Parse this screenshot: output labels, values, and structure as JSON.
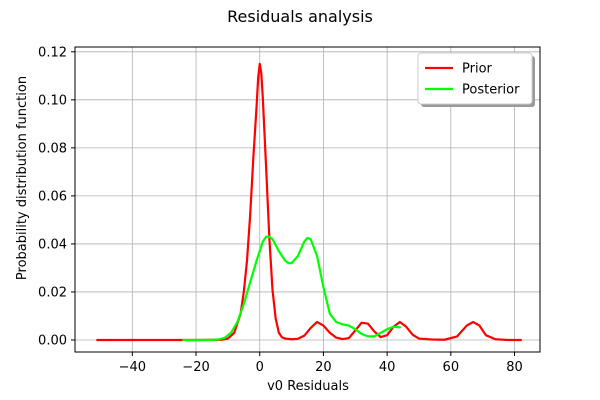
{
  "chart_data": {
    "type": "line",
    "title": "Residuals analysis",
    "xlabel": "v0 Residuals",
    "ylabel": "Probability distribution function",
    "xlim": [
      -58,
      88
    ],
    "ylim": [
      -0.005,
      0.122
    ],
    "x_ticks": [
      -40,
      -20,
      0,
      20,
      40,
      60,
      80
    ],
    "x_tick_labels": [
      "−40",
      "−20",
      "0",
      "20",
      "40",
      "60",
      "80"
    ],
    "y_ticks": [
      0.0,
      0.02,
      0.04,
      0.06,
      0.08,
      0.1,
      0.12
    ],
    "y_tick_labels": [
      "0.00",
      "0.02",
      "0.04",
      "0.06",
      "0.08",
      "0.10",
      "0.12"
    ],
    "grid": true,
    "legend_position": "top-right",
    "series": [
      {
        "name": "Prior",
        "color": "#ff0000",
        "points": [
          [
            -51,
            0.0
          ],
          [
            -40,
            0.0
          ],
          [
            -30,
            0.0
          ],
          [
            -20,
            0.0
          ],
          [
            -12,
            0.0001
          ],
          [
            -10,
            0.0006
          ],
          [
            -8,
            0.003
          ],
          [
            -6,
            0.011
          ],
          [
            -5,
            0.02
          ],
          [
            -4,
            0.033
          ],
          [
            -3,
            0.052
          ],
          [
            -2,
            0.076
          ],
          [
            -1,
            0.097
          ],
          [
            -0.5,
            0.109
          ],
          [
            0,
            0.115
          ],
          [
            0.5,
            0.111
          ],
          [
            1,
            0.1
          ],
          [
            2,
            0.072
          ],
          [
            3,
            0.043
          ],
          [
            4,
            0.021
          ],
          [
            5,
            0.009
          ],
          [
            6,
            0.003
          ],
          [
            7,
            0.0011
          ],
          [
            8,
            0.0006
          ],
          [
            10,
            0.0003
          ],
          [
            12,
            0.0005
          ],
          [
            14,
            0.0018
          ],
          [
            16,
            0.005
          ],
          [
            18,
            0.0075
          ],
          [
            20,
            0.006
          ],
          [
            22,
            0.003
          ],
          [
            24,
            0.001
          ],
          [
            26,
            0.0004
          ],
          [
            28,
            0.0008
          ],
          [
            30,
            0.004
          ],
          [
            32,
            0.0072
          ],
          [
            34,
            0.0068
          ],
          [
            36,
            0.0035
          ],
          [
            38,
            0.0012
          ],
          [
            40,
            0.002
          ],
          [
            42,
            0.0055
          ],
          [
            44,
            0.0075
          ],
          [
            46,
            0.0055
          ],
          [
            48,
            0.0022
          ],
          [
            50,
            0.0006
          ],
          [
            54,
            0.0002
          ],
          [
            58,
            0.0001
          ],
          [
            62,
            0.0015
          ],
          [
            65,
            0.006
          ],
          [
            67,
            0.0075
          ],
          [
            69,
            0.006
          ],
          [
            71,
            0.002
          ],
          [
            74,
            0.0003
          ],
          [
            78,
            0.0
          ],
          [
            82,
            0.0
          ]
        ]
      },
      {
        "name": "Posterior",
        "color": "#00ff00",
        "points": [
          [
            -24,
            0.0
          ],
          [
            -20,
            0.0
          ],
          [
            -16,
            0.0
          ],
          [
            -13,
            0.0002
          ],
          [
            -11,
            0.0009
          ],
          [
            -9,
            0.003
          ],
          [
            -7,
            0.0075
          ],
          [
            -5,
            0.015
          ],
          [
            -3,
            0.024
          ],
          [
            -1,
            0.033
          ],
          [
            1,
            0.041
          ],
          [
            2,
            0.043
          ],
          [
            3,
            0.043
          ],
          [
            4,
            0.042
          ],
          [
            6,
            0.037
          ],
          [
            8,
            0.033
          ],
          [
            9,
            0.032
          ],
          [
            10,
            0.032
          ],
          [
            12,
            0.035
          ],
          [
            14,
            0.041
          ],
          [
            15,
            0.0425
          ],
          [
            16,
            0.042
          ],
          [
            18,
            0.035
          ],
          [
            20,
            0.022
          ],
          [
            22,
            0.011
          ],
          [
            24,
            0.0075
          ],
          [
            26,
            0.0065
          ],
          [
            28,
            0.006
          ],
          [
            30,
            0.0045
          ],
          [
            32,
            0.0025
          ],
          [
            34,
            0.0015
          ],
          [
            36,
            0.0015
          ],
          [
            38,
            0.003
          ],
          [
            40,
            0.0045
          ],
          [
            42,
            0.0055
          ],
          [
            44,
            0.0053
          ]
        ]
      }
    ]
  }
}
